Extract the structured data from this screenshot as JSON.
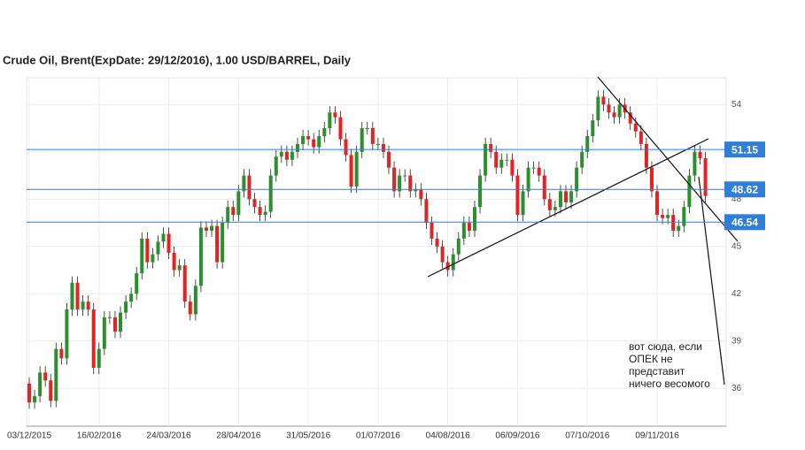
{
  "chart_data": {
    "type": "candlestick",
    "title": "Crude Oil, Brent(ExpDate: 29/12/2016), 1.00 USD/BARREL, Daily",
    "categories": [
      "03/12/2015",
      null,
      null,
      null,
      null,
      null,
      null,
      null,
      null,
      null,
      null,
      null,
      null,
      "16/02/2016",
      null,
      null,
      null,
      null,
      null,
      null,
      null,
      null,
      null,
      null,
      null,
      null,
      "24/03/2016",
      null,
      null,
      null,
      null,
      null,
      null,
      null,
      null,
      null,
      null,
      null,
      null,
      "28/04/2016",
      null,
      null,
      null,
      null,
      null,
      null,
      null,
      null,
      null,
      null,
      null,
      null,
      "31/05/2016",
      null,
      null,
      null,
      null,
      null,
      null,
      null,
      null,
      null,
      null,
      null,
      null,
      "01/07/2016",
      null,
      null,
      null,
      null,
      null,
      null,
      null,
      null,
      null,
      null,
      null,
      null,
      "04/08/2016",
      null,
      null,
      null,
      null,
      null,
      null,
      null,
      null,
      null,
      null,
      null,
      null,
      "06/09/2016",
      null,
      null,
      null,
      null,
      null,
      null,
      null,
      null,
      null,
      null,
      null,
      null,
      "07/10/2016",
      null,
      null,
      null,
      null,
      null,
      null,
      null,
      null,
      null,
      null,
      null,
      null,
      "09/11/2016",
      null,
      null,
      null,
      null,
      null,
      null,
      null,
      null,
      null
    ],
    "open": [
      36.3,
      35.1,
      35.5,
      37.0,
      36.5,
      35.2,
      38.5,
      37.9,
      41.0,
      42.7,
      41.0,
      41.5,
      41.0,
      37.3,
      38.5,
      40.5,
      40.5,
      39.6,
      40.8,
      41.5,
      42.0,
      43.3,
      45.5,
      44.0,
      44.5,
      45.3,
      45.8,
      44.6,
      43.5,
      43.8,
      41.5,
      40.7,
      42.5,
      46.2,
      46.0,
      46.3,
      44.0,
      46.5,
      47.5,
      47.0,
      48.5,
      49.5,
      48.0,
      47.5,
      47.0,
      47.2,
      49.5,
      50.7,
      51.0,
      50.5,
      51.0,
      51.5,
      52.0,
      51.8,
      51.3,
      52.0,
      52.5,
      53.5,
      53.2,
      51.8,
      50.8,
      48.8,
      51.0,
      52.5,
      52.5,
      51.5,
      51.5,
      51.0,
      50.0,
      48.5,
      49.5,
      49.5,
      48.5,
      48.6,
      48.0,
      46.5,
      45.5,
      45.0,
      44.0,
      43.5,
      44.5,
      45.5,
      46.5,
      46.0,
      47.5,
      49.5,
      51.5,
      51.0,
      50.0,
      50.5,
      50.5,
      49.5,
      47.0,
      48.5,
      50.0,
      50.0,
      49.5,
      48.0,
      47.3,
      47.5,
      48.5,
      47.8,
      48.5,
      50.0,
      51.0,
      52.0,
      53.0,
      54.5,
      54.0,
      53.5,
      53.2,
      54.0,
      53.5,
      52.8,
      52.3,
      51.5,
      50.0,
      48.5,
      47.0,
      46.8,
      47.0,
      46.0,
      46.3,
      47.5,
      49.5,
      51.0,
      50.6
    ],
    "high": [
      36.7,
      35.9,
      37.4,
      37.4,
      36.9,
      38.9,
      38.9,
      41.4,
      43.1,
      43.1,
      41.9,
      41.9,
      41.4,
      38.9,
      40.9,
      40.9,
      40.9,
      41.2,
      41.9,
      42.4,
      43.7,
      45.9,
      45.9,
      44.9,
      45.7,
      46.2,
      46.2,
      45.0,
      44.2,
      44.2,
      41.9,
      42.9,
      46.6,
      46.6,
      46.7,
      46.7,
      46.9,
      47.9,
      47.9,
      48.9,
      49.9,
      49.9,
      48.4,
      47.9,
      47.6,
      49.9,
      51.1,
      51.4,
      51.4,
      51.4,
      51.9,
      52.4,
      52.4,
      52.2,
      52.4,
      52.9,
      53.9,
      53.9,
      53.6,
      52.2,
      51.2,
      51.4,
      52.9,
      52.9,
      52.9,
      51.9,
      51.9,
      51.4,
      50.4,
      49.9,
      49.9,
      49.9,
      49.0,
      49.0,
      48.4,
      46.9,
      45.9,
      45.4,
      44.4,
      44.9,
      45.9,
      46.9,
      46.9,
      47.9,
      49.9,
      51.9,
      51.9,
      51.4,
      50.9,
      50.9,
      50.9,
      49.9,
      48.9,
      50.4,
      50.4,
      50.4,
      49.9,
      48.4,
      47.9,
      48.9,
      48.9,
      48.9,
      50.4,
      51.4,
      52.4,
      53.4,
      54.9,
      54.9,
      54.4,
      53.9,
      54.4,
      54.4,
      53.9,
      53.2,
      52.7,
      51.9,
      50.4,
      48.9,
      47.4,
      47.4,
      47.4,
      46.7,
      47.9,
      49.9,
      51.4,
      51.4,
      51.0
    ],
    "low": [
      34.7,
      34.7,
      35.1,
      36.1,
      34.8,
      34.8,
      37.5,
      37.5,
      40.6,
      40.6,
      40.6,
      40.6,
      36.9,
      36.9,
      38.1,
      40.1,
      39.2,
      39.2,
      40.4,
      41.1,
      41.6,
      42.9,
      43.6,
      43.6,
      44.1,
      44.9,
      44.2,
      43.1,
      43.1,
      41.1,
      40.3,
      40.3,
      42.1,
      45.6,
      45.6,
      43.6,
      43.6,
      46.1,
      46.6,
      46.6,
      48.1,
      47.6,
      47.1,
      46.6,
      46.6,
      46.8,
      49.1,
      50.3,
      50.1,
      50.1,
      50.6,
      51.1,
      51.4,
      50.9,
      50.9,
      51.6,
      52.1,
      52.8,
      51.4,
      50.4,
      48.4,
      48.4,
      50.6,
      52.1,
      51.1,
      51.1,
      50.6,
      49.6,
      48.1,
      48.1,
      49.1,
      48.1,
      48.1,
      47.6,
      46.1,
      45.1,
      44.6,
      43.6,
      43.1,
      43.1,
      44.1,
      45.1,
      45.6,
      45.6,
      47.1,
      49.1,
      50.6,
      49.6,
      49.6,
      50.1,
      49.1,
      46.6,
      46.6,
      48.1,
      49.6,
      49.1,
      47.6,
      46.9,
      46.9,
      47.1,
      47.4,
      47.4,
      48.1,
      49.6,
      50.6,
      51.6,
      52.6,
      53.6,
      53.1,
      52.8,
      52.8,
      53.1,
      52.4,
      51.9,
      51.1,
      49.6,
      48.1,
      46.6,
      46.4,
      46.4,
      45.6,
      45.6,
      45.9,
      47.1,
      49.1,
      50.2,
      47.8
    ],
    "close": [
      35.1,
      35.5,
      37.0,
      36.5,
      35.2,
      38.5,
      37.9,
      41.0,
      42.7,
      41.0,
      41.5,
      41.0,
      37.3,
      38.5,
      40.5,
      40.5,
      39.6,
      40.8,
      41.5,
      42.0,
      43.3,
      45.5,
      44.0,
      44.5,
      45.3,
      45.8,
      44.6,
      43.5,
      43.8,
      41.5,
      40.7,
      42.5,
      46.2,
      46.0,
      46.3,
      44.0,
      46.5,
      47.5,
      47.0,
      48.5,
      49.5,
      48.0,
      47.5,
      47.0,
      47.2,
      49.5,
      50.7,
      51.0,
      50.5,
      51.0,
      51.5,
      52.0,
      51.8,
      51.3,
      52.0,
      52.5,
      53.5,
      53.2,
      51.8,
      50.8,
      48.8,
      51.0,
      52.5,
      52.5,
      51.5,
      51.5,
      51.0,
      50.0,
      48.5,
      49.5,
      49.5,
      48.5,
      48.6,
      48.0,
      46.5,
      45.5,
      45.0,
      44.0,
      43.5,
      44.5,
      45.5,
      46.5,
      46.0,
      47.5,
      49.5,
      51.5,
      51.0,
      50.0,
      50.5,
      50.5,
      49.5,
      47.0,
      48.5,
      50.0,
      50.0,
      49.5,
      48.0,
      47.3,
      47.5,
      48.5,
      47.8,
      48.5,
      50.0,
      51.0,
      52.0,
      53.0,
      54.5,
      54.0,
      53.5,
      53.2,
      54.0,
      53.5,
      52.8,
      52.3,
      51.5,
      50.0,
      48.5,
      47.0,
      46.8,
      47.0,
      46.0,
      46.3,
      47.5,
      49.5,
      51.0,
      50.6,
      48.2
    ],
    "up_color": "#2b8f2b",
    "down_color": "#e52222",
    "ylim": [
      33.6,
      55.7
    ],
    "yticks": [
      36,
      39,
      42,
      45,
      48,
      51,
      54
    ],
    "levels": [
      51.15,
      48.62,
      46.54
    ],
    "level_color": "#2f7ed8",
    "annotation": "вот сюда, если ОПЕК не представит ничего весомого"
  }
}
